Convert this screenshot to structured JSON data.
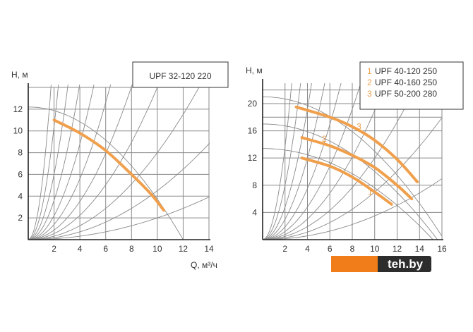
{
  "chart_data": [
    {
      "type": "line",
      "title": "UPF 32-120 220",
      "ylabel": "H, м",
      "xlabel": "Q, м³/ч",
      "xlim": [
        0,
        14
      ],
      "ylim": [
        0,
        14
      ],
      "xticks": [
        "2",
        "4",
        "6",
        "8",
        "10",
        "12",
        "14"
      ],
      "yticks": [
        "2",
        "4",
        "6",
        "8",
        "10",
        "12"
      ],
      "grid": true,
      "curve_color": "#f0a04c",
      "series": [
        {
          "x": [
            2.0,
            4.0,
            6.0,
            8.0,
            9.5,
            10.5
          ],
          "y": [
            11.0,
            9.8,
            8.2,
            6.0,
            4.2,
            2.7
          ]
        }
      ]
    },
    {
      "type": "line",
      "ylabel": "H, м",
      "xlim": [
        0,
        16
      ],
      "ylim": [
        0,
        23
      ],
      "xticks": [
        "2",
        "4",
        "6",
        "8",
        "10",
        "12",
        "14",
        "16"
      ],
      "yticks": [
        "4",
        "8",
        "12",
        "16",
        "20"
      ],
      "grid": true,
      "curve_color": "#f0a04c",
      "legend": [
        "UPF 40-120 250",
        "UPF 40-160 250",
        "UPF 50-200 280"
      ],
      "series": [
        {
          "name": "UPF 40-120 250",
          "label": "1",
          "x": [
            3.5,
            6.0,
            8.0,
            10.0,
            11.5
          ],
          "y": [
            12.0,
            10.8,
            9.2,
            7.0,
            5.2
          ]
        },
        {
          "name": "UPF 40-160 250",
          "label": "2",
          "x": [
            3.5,
            6.0,
            8.0,
            10.0,
            12.0,
            13.3
          ],
          "y": [
            15.0,
            13.8,
            12.4,
            10.6,
            8.0,
            6.0
          ]
        },
        {
          "name": "UPF 50-200 280",
          "label": "3",
          "x": [
            3.0,
            6.0,
            8.0,
            10.0,
            12.0,
            13.8
          ],
          "y": [
            19.5,
            18.0,
            16.6,
            14.6,
            11.8,
            8.5
          ]
        }
      ]
    }
  ],
  "brand": {
    "text": "teh.by"
  }
}
